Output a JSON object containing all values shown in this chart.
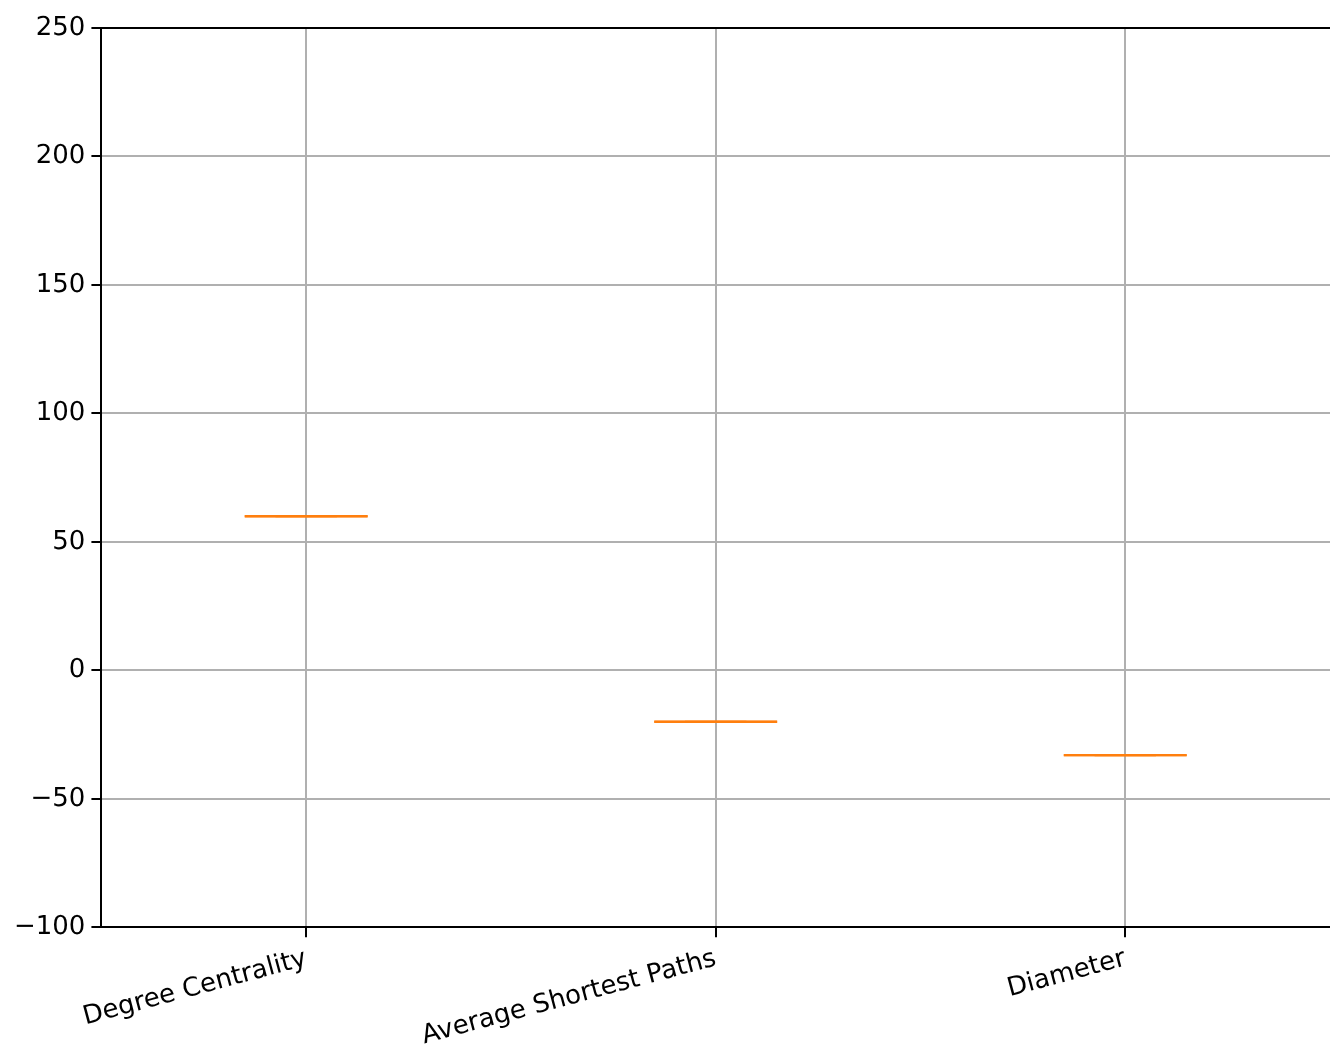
{
  "chart_data": {
    "type": "box",
    "categories": [
      "Degree Centrality",
      "Average Shortest Paths",
      "Diameter"
    ],
    "boxes": [
      {
        "low": 60,
        "q1": 60,
        "median": 60,
        "q3": 60,
        "high": 60
      },
      {
        "low": -20,
        "q1": -20,
        "median": -20,
        "q3": -20,
        "high": -20
      },
      {
        "low": -33,
        "q1": -33,
        "median": -33,
        "q3": -33,
        "high": -33
      }
    ],
    "color": "#ff7f0e",
    "ylim": [
      -100,
      250
    ],
    "yticks": [
      -100,
      -50,
      0,
      50,
      100,
      150,
      200,
      250
    ],
    "grid": true
  }
}
